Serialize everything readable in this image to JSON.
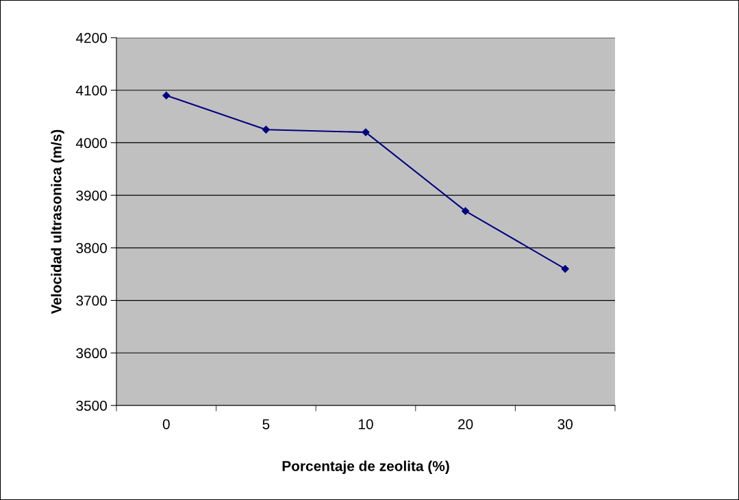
{
  "chart_data": {
    "type": "line",
    "xlabel": "Porcentaje de zeolita (%)",
    "ylabel": "Velocidad ultrasonica (m/s)",
    "categories": [
      "0",
      "5",
      "10",
      "20",
      "30"
    ],
    "series": [
      {
        "color": "#000080",
        "values": [
          4090,
          4025,
          4020,
          3870,
          3760
        ]
      }
    ],
    "ylim": [
      3500,
      4200
    ],
    "yticks": [
      3500,
      3600,
      3700,
      3800,
      3900,
      4000,
      4100,
      4200
    ],
    "grid": "y",
    "marker": "diamond",
    "line_style": "solid",
    "legend": false
  }
}
